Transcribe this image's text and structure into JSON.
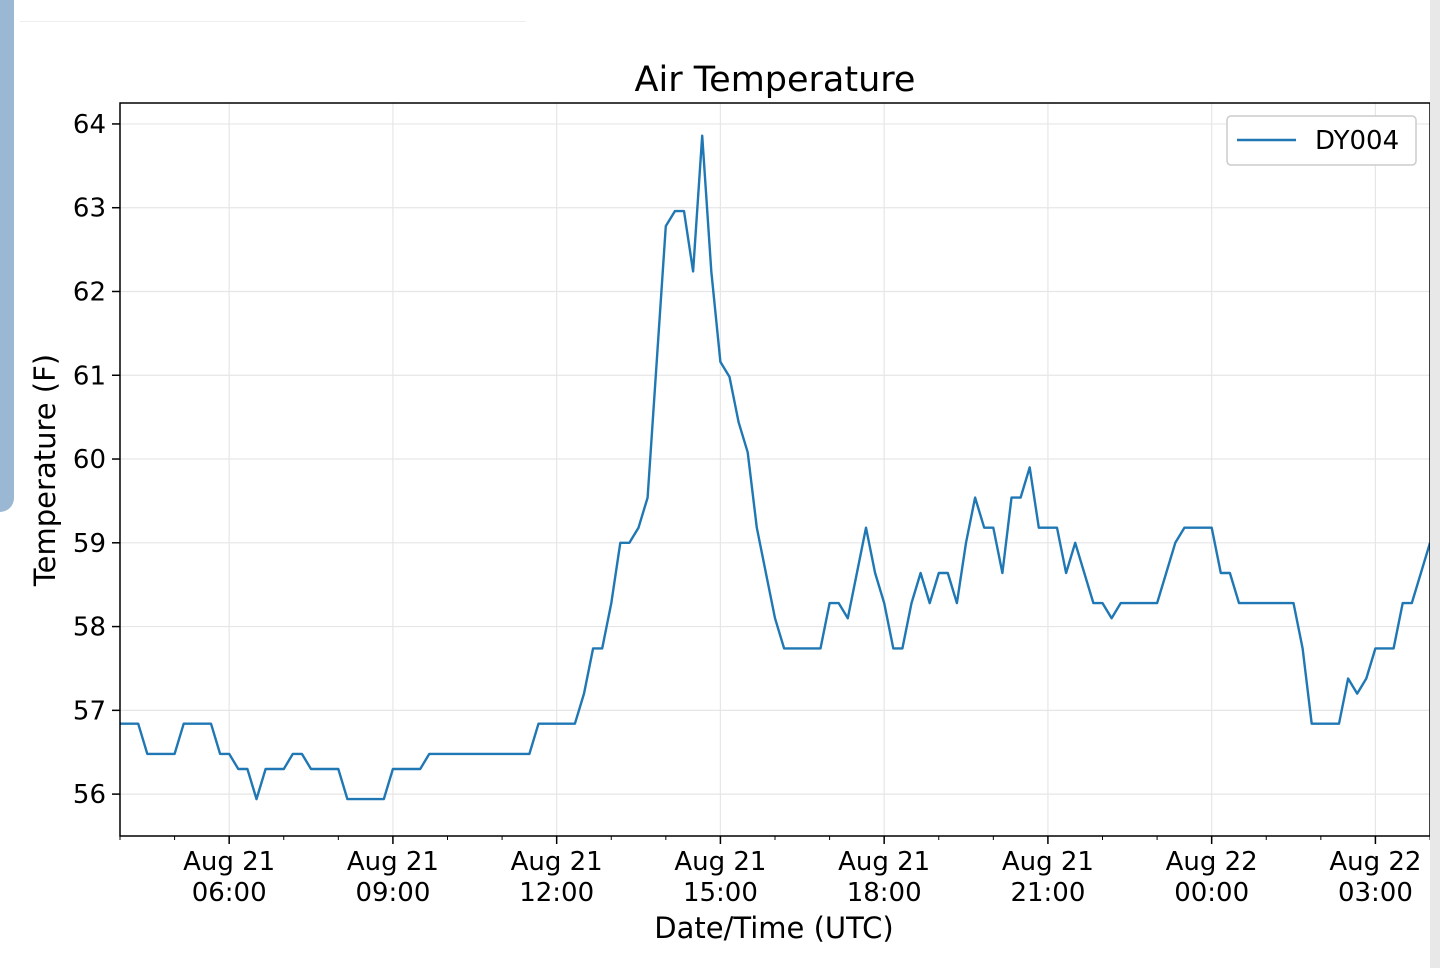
{
  "chart_data": {
    "type": "line",
    "title": "Air Temperature",
    "xlabel": "Date/Time (UTC)",
    "ylabel": "Temperature (F)",
    "x_unit": "UTC time",
    "xlim": [
      "2017-08-21 04:00",
      "2017-08-22 04:00"
    ],
    "ylim": [
      55.5,
      64.25
    ],
    "yticks": [
      56,
      57,
      58,
      59,
      60,
      61,
      62,
      63,
      64
    ],
    "xticks": [
      {
        "t": "2017-08-21 06:00",
        "line1": "Aug 21",
        "line2": "06:00"
      },
      {
        "t": "2017-08-21 09:00",
        "line1": "Aug 21",
        "line2": "09:00"
      },
      {
        "t": "2017-08-21 12:00",
        "line1": "Aug 21",
        "line2": "12:00"
      },
      {
        "t": "2017-08-21 15:00",
        "line1": "Aug 21",
        "line2": "15:00"
      },
      {
        "t": "2017-08-21 18:00",
        "line1": "Aug 21",
        "line2": "18:00"
      },
      {
        "t": "2017-08-21 21:00",
        "line1": "Aug 21",
        "line2": "21:00"
      },
      {
        "t": "2017-08-22 00:00",
        "line1": "Aug 22",
        "line2": "00:00"
      },
      {
        "t": "2017-08-22 03:00",
        "line1": "Aug 22",
        "line2": "03:00"
      }
    ],
    "grid": true,
    "legend_position": "top-right",
    "series": [
      {
        "name": "DY004",
        "color": "#1f77b4",
        "points": [
          [
            "2017-08-21 04:00",
            56.84
          ],
          [
            "2017-08-21 04:20",
            56.84
          ],
          [
            "2017-08-21 04:30",
            56.48
          ],
          [
            "2017-08-21 05:00",
            56.48
          ],
          [
            "2017-08-21 05:10",
            56.84
          ],
          [
            "2017-08-21 05:40",
            56.84
          ],
          [
            "2017-08-21 05:50",
            56.48
          ],
          [
            "2017-08-21 06:00",
            56.48
          ],
          [
            "2017-08-21 06:10",
            56.3
          ],
          [
            "2017-08-21 06:20",
            56.3
          ],
          [
            "2017-08-21 06:30",
            55.94
          ],
          [
            "2017-08-21 06:40",
            56.3
          ],
          [
            "2017-08-21 07:00",
            56.3
          ],
          [
            "2017-08-21 07:10",
            56.48
          ],
          [
            "2017-08-21 07:20",
            56.48
          ],
          [
            "2017-08-21 07:30",
            56.3
          ],
          [
            "2017-08-21 08:00",
            56.3
          ],
          [
            "2017-08-21 08:10",
            55.94
          ],
          [
            "2017-08-21 08:50",
            55.94
          ],
          [
            "2017-08-21 09:00",
            56.3
          ],
          [
            "2017-08-21 09:30",
            56.3
          ],
          [
            "2017-08-21 09:40",
            56.48
          ],
          [
            "2017-08-21 11:30",
            56.48
          ],
          [
            "2017-08-21 11:40",
            56.84
          ],
          [
            "2017-08-21 12:20",
            56.84
          ],
          [
            "2017-08-21 12:30",
            57.2
          ],
          [
            "2017-08-21 12:40",
            57.74
          ],
          [
            "2017-08-21 12:50",
            57.74
          ],
          [
            "2017-08-21 13:00",
            58.28
          ],
          [
            "2017-08-21 13:10",
            59.0
          ],
          [
            "2017-08-21 13:20",
            59.0
          ],
          [
            "2017-08-21 13:30",
            59.18
          ],
          [
            "2017-08-21 13:40",
            59.54
          ],
          [
            "2017-08-21 13:50",
            61.16
          ],
          [
            "2017-08-21 14:00",
            62.78
          ],
          [
            "2017-08-21 14:10",
            62.96
          ],
          [
            "2017-08-21 14:20",
            62.96
          ],
          [
            "2017-08-21 14:30",
            62.24
          ],
          [
            "2017-08-21 14:40",
            63.86
          ],
          [
            "2017-08-21 14:50",
            62.24
          ],
          [
            "2017-08-21 15:00",
            61.16
          ],
          [
            "2017-08-21 15:10",
            60.98
          ],
          [
            "2017-08-21 15:20",
            60.44
          ],
          [
            "2017-08-21 15:30",
            60.08
          ],
          [
            "2017-08-21 15:40",
            59.18
          ],
          [
            "2017-08-21 15:50",
            58.64
          ],
          [
            "2017-08-21 16:00",
            58.1
          ],
          [
            "2017-08-21 16:10",
            57.74
          ],
          [
            "2017-08-21 16:50",
            57.74
          ],
          [
            "2017-08-21 17:00",
            58.28
          ],
          [
            "2017-08-21 17:10",
            58.28
          ],
          [
            "2017-08-21 17:20",
            58.1
          ],
          [
            "2017-08-21 17:30",
            58.64
          ],
          [
            "2017-08-21 17:40",
            59.18
          ],
          [
            "2017-08-21 17:50",
            58.64
          ],
          [
            "2017-08-21 18:00",
            58.28
          ],
          [
            "2017-08-21 18:10",
            57.74
          ],
          [
            "2017-08-21 18:20",
            57.74
          ],
          [
            "2017-08-21 18:30",
            58.28
          ],
          [
            "2017-08-21 18:40",
            58.64
          ],
          [
            "2017-08-21 18:50",
            58.28
          ],
          [
            "2017-08-21 19:00",
            58.64
          ],
          [
            "2017-08-21 19:10",
            58.64
          ],
          [
            "2017-08-21 19:20",
            58.28
          ],
          [
            "2017-08-21 19:30",
            59.0
          ],
          [
            "2017-08-21 19:40",
            59.54
          ],
          [
            "2017-08-21 19:50",
            59.18
          ],
          [
            "2017-08-21 20:00",
            59.18
          ],
          [
            "2017-08-21 20:10",
            58.64
          ],
          [
            "2017-08-21 20:20",
            59.54
          ],
          [
            "2017-08-21 20:30",
            59.54
          ],
          [
            "2017-08-21 20:40",
            59.9
          ],
          [
            "2017-08-21 20:50",
            59.18
          ],
          [
            "2017-08-21 21:10",
            59.18
          ],
          [
            "2017-08-21 21:20",
            58.64
          ],
          [
            "2017-08-21 21:30",
            59.0
          ],
          [
            "2017-08-21 21:40",
            58.64
          ],
          [
            "2017-08-21 21:50",
            58.28
          ],
          [
            "2017-08-21 22:00",
            58.28
          ],
          [
            "2017-08-21 22:10",
            58.1
          ],
          [
            "2017-08-21 22:20",
            58.28
          ],
          [
            "2017-08-21 23:00",
            58.28
          ],
          [
            "2017-08-21 23:10",
            58.64
          ],
          [
            "2017-08-21 23:20",
            59.0
          ],
          [
            "2017-08-21 23:30",
            59.18
          ],
          [
            "2017-08-22 00:00",
            59.18
          ],
          [
            "2017-08-22 00:10",
            58.64
          ],
          [
            "2017-08-22 00:20",
            58.64
          ],
          [
            "2017-08-22 00:30",
            58.28
          ],
          [
            "2017-08-22 01:30",
            58.28
          ],
          [
            "2017-08-22 01:40",
            57.74
          ],
          [
            "2017-08-22 01:50",
            56.84
          ],
          [
            "2017-08-22 02:20",
            56.84
          ],
          [
            "2017-08-22 02:30",
            57.38
          ],
          [
            "2017-08-22 02:40",
            57.2
          ],
          [
            "2017-08-22 02:50",
            57.38
          ],
          [
            "2017-08-22 03:00",
            57.74
          ],
          [
            "2017-08-22 03:20",
            57.74
          ],
          [
            "2017-08-22 03:30",
            58.28
          ],
          [
            "2017-08-22 03:40",
            58.28
          ],
          [
            "2017-08-22 03:50",
            58.64
          ],
          [
            "2017-08-22 04:00",
            59.0
          ]
        ]
      }
    ]
  }
}
